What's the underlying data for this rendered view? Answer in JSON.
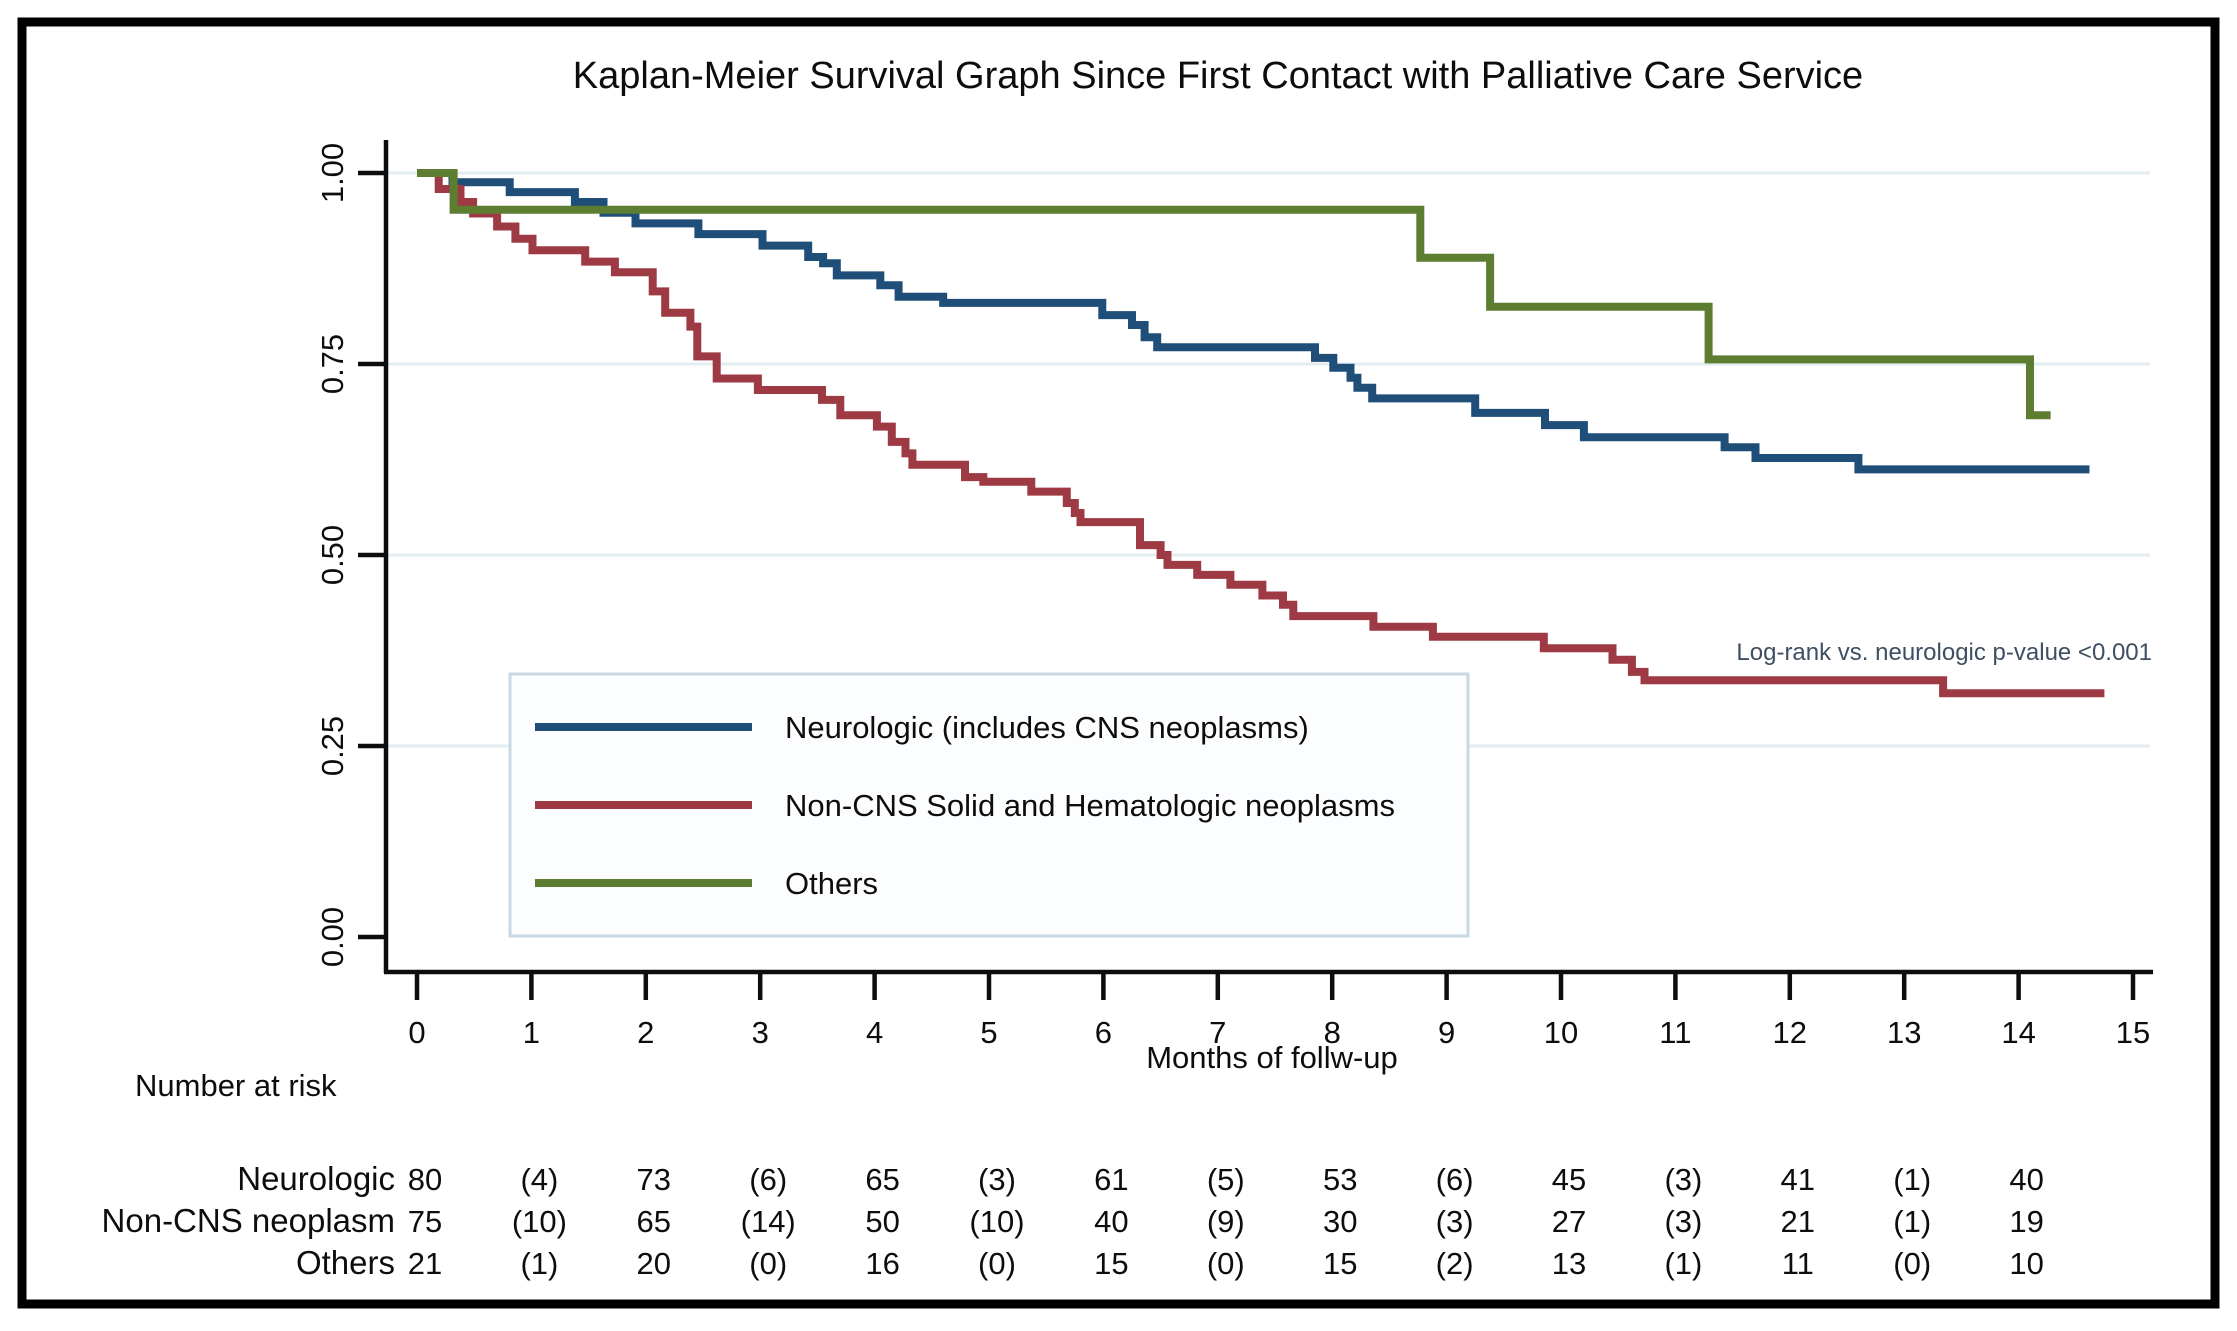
{
  "figure": {
    "title": "Kaplan-Meier Survival Graph Since First Contact with Palliative Care Service",
    "border_color": "#000000",
    "background_color": "#ffffff",
    "gridline_color": "#e3edf2",
    "legend_box": {
      "fill": "#fcfdfe",
      "border": "#c9d8e2"
    }
  },
  "chart_data": {
    "type": "line",
    "subtype": "kaplan-meier-step",
    "title": "Kaplan-Meier Survival Graph Since First Contact with Palliative Care Service",
    "xlabel": "Months of follw-up",
    "ylabel": "",
    "xlim": [
      0,
      15
    ],
    "ylim": [
      0.0,
      1.0
    ],
    "x_ticks": [
      0,
      1,
      2,
      3,
      4,
      5,
      6,
      7,
      8,
      9,
      10,
      11,
      12,
      13,
      14,
      15
    ],
    "x_tick_labels": [
      "0",
      "1",
      "2",
      "3",
      "4",
      "5",
      "6",
      "7",
      "8",
      "9",
      "10",
      "11",
      "12",
      "13",
      "14",
      "15"
    ],
    "y_ticks": [
      0.0,
      0.25,
      0.5,
      0.75,
      1.0
    ],
    "y_tick_labels": [
      "0.00",
      "0.25",
      "0.50",
      "0.75",
      "1.00"
    ],
    "grid": true,
    "legend_position": "lower-left-box",
    "annotation": "Log-rank vs. neurologic p-value <0.001",
    "series": [
      {
        "name": "Neurologic (includes CNS neoplasms)",
        "slug": "neurologic",
        "color": "#1f4e79",
        "end_month": 14.62,
        "steps": [
          [
            0,
            1.0
          ],
          [
            0.31,
            0.988
          ],
          [
            0.81,
            0.975
          ],
          [
            1.38,
            0.962
          ],
          [
            1.63,
            0.948
          ],
          [
            1.91,
            0.934
          ],
          [
            2.46,
            0.92
          ],
          [
            3.02,
            0.905
          ],
          [
            3.42,
            0.89
          ],
          [
            3.55,
            0.882
          ],
          [
            3.67,
            0.866
          ],
          [
            4.05,
            0.853
          ],
          [
            4.21,
            0.838
          ],
          [
            4.6,
            0.83
          ],
          [
            5.99,
            0.814
          ],
          [
            6.25,
            0.801
          ],
          [
            6.36,
            0.785
          ],
          [
            6.47,
            0.772
          ],
          [
            7.85,
            0.758
          ],
          [
            8.01,
            0.745
          ],
          [
            8.16,
            0.732
          ],
          [
            8.22,
            0.719
          ],
          [
            8.35,
            0.705
          ],
          [
            9.25,
            0.686
          ],
          [
            9.86,
            0.67
          ],
          [
            10.2,
            0.654
          ],
          [
            11.43,
            0.641
          ],
          [
            11.7,
            0.627
          ],
          [
            12.6,
            0.612
          ]
        ]
      },
      {
        "name": "Non-CNS Solid and Hematologic neoplasms",
        "slug": "non-cns",
        "color": "#9e3a44",
        "end_month": 14.75,
        "steps": [
          [
            0,
            1.0
          ],
          [
            0.19,
            0.979
          ],
          [
            0.38,
            0.962
          ],
          [
            0.49,
            0.947
          ],
          [
            0.7,
            0.93
          ],
          [
            0.86,
            0.914
          ],
          [
            1.01,
            0.899
          ],
          [
            1.47,
            0.884
          ],
          [
            1.73,
            0.87
          ],
          [
            2.06,
            0.845
          ],
          [
            2.17,
            0.817
          ],
          [
            2.39,
            0.799
          ],
          [
            2.45,
            0.76
          ],
          [
            2.62,
            0.731
          ],
          [
            2.98,
            0.716
          ],
          [
            3.54,
            0.703
          ],
          [
            3.7,
            0.683
          ],
          [
            4.02,
            0.668
          ],
          [
            4.15,
            0.648
          ],
          [
            4.27,
            0.633
          ],
          [
            4.33,
            0.618
          ],
          [
            4.79,
            0.602
          ],
          [
            4.95,
            0.596
          ],
          [
            5.37,
            0.583
          ],
          [
            5.68,
            0.568
          ],
          [
            5.75,
            0.555
          ],
          [
            5.8,
            0.543
          ],
          [
            6.32,
            0.513
          ],
          [
            6.5,
            0.5
          ],
          [
            6.56,
            0.487
          ],
          [
            6.82,
            0.474
          ],
          [
            7.11,
            0.461
          ],
          [
            7.39,
            0.447
          ],
          [
            7.57,
            0.435
          ],
          [
            7.66,
            0.42
          ],
          [
            8.36,
            0.406
          ],
          [
            8.88,
            0.393
          ],
          [
            9.85,
            0.378
          ],
          [
            10.45,
            0.363
          ],
          [
            10.62,
            0.347
          ],
          [
            10.73,
            0.336
          ],
          [
            13.34,
            0.319
          ]
        ]
      },
      {
        "name": "Others",
        "slug": "others",
        "color": "#5d7d31",
        "end_month": 14.28,
        "steps": [
          [
            0,
            1.0
          ],
          [
            0.32,
            0.952
          ],
          [
            8.77,
            0.889
          ],
          [
            9.38,
            0.825
          ],
          [
            11.29,
            0.756
          ],
          [
            14.1,
            0.683
          ]
        ]
      }
    ]
  },
  "risk_table": {
    "header": "Number at risk",
    "columns_months": [
      0,
      1,
      2,
      3,
      4,
      5,
      6,
      7,
      8,
      9,
      10,
      11,
      12,
      13,
      14
    ],
    "rows": [
      {
        "label": "Neurologic",
        "values": [
          "80",
          "(4)",
          "73",
          "(6)",
          "65",
          "(3)",
          "61",
          "(5)",
          "53",
          "(6)",
          "45",
          "(3)",
          "41",
          "(1)",
          "40"
        ]
      },
      {
        "label": "Non-CNS neoplasm",
        "values": [
          "75",
          "(10)",
          "65",
          "(14)",
          "50",
          "(10)",
          "40",
          "(9)",
          "30",
          "(3)",
          "27",
          "(3)",
          "21",
          "(1)",
          "19"
        ]
      },
      {
        "label": "Others",
        "values": [
          "21",
          "(1)",
          "20",
          "(0)",
          "16",
          "(0)",
          "15",
          "(0)",
          "15",
          "(2)",
          "13",
          "(1)",
          "11",
          "(0)",
          "10"
        ]
      }
    ]
  }
}
